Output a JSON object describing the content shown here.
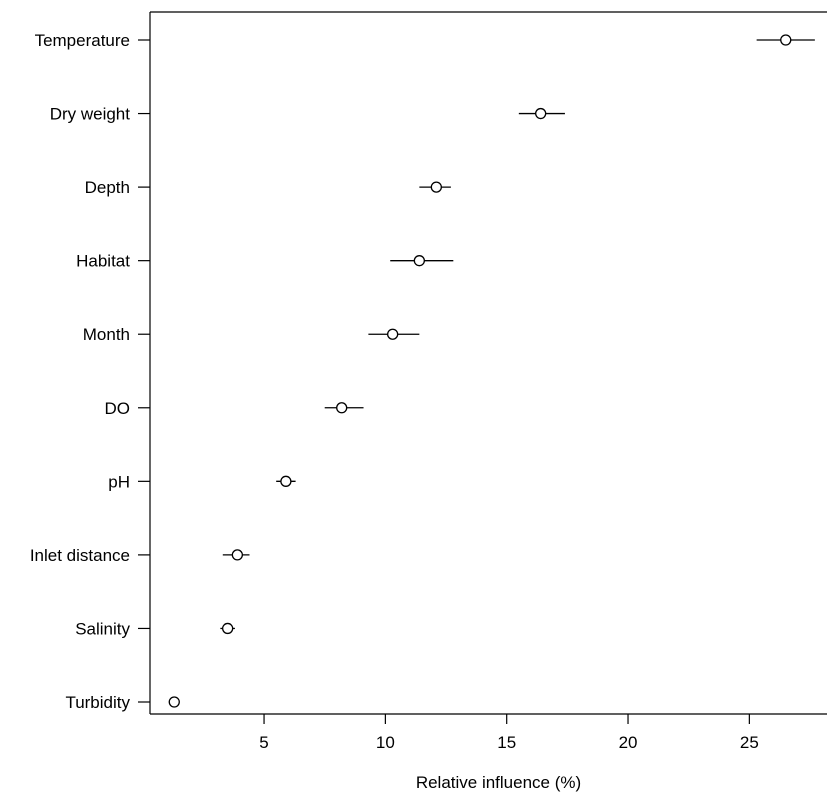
{
  "chart_data": {
    "type": "scatter",
    "title": "",
    "xlabel": "Relative influence (%)",
    "ylabel": "",
    "xlim": [
      0.3,
      28.2
    ],
    "xticks": [
      5,
      10,
      15,
      20,
      25
    ],
    "grid": false,
    "legend": "none",
    "categories": [
      "Temperature",
      "Dry weight",
      "Depth",
      "Habitat",
      "Month",
      "DO",
      "pH",
      "Inlet distance",
      "Salinity",
      "Turbidity"
    ],
    "series": [
      {
        "values": [
          26.5,
          16.4,
          12.1,
          11.4,
          10.3,
          8.2,
          5.9,
          3.9,
          3.5,
          1.3
        ],
        "lower": [
          25.3,
          15.5,
          11.4,
          10.2,
          9.3,
          7.5,
          5.5,
          3.3,
          3.2,
          1.1
        ],
        "upper": [
          27.7,
          17.4,
          12.7,
          12.8,
          11.4,
          9.1,
          6.3,
          4.4,
          3.8,
          1.5
        ]
      }
    ]
  }
}
